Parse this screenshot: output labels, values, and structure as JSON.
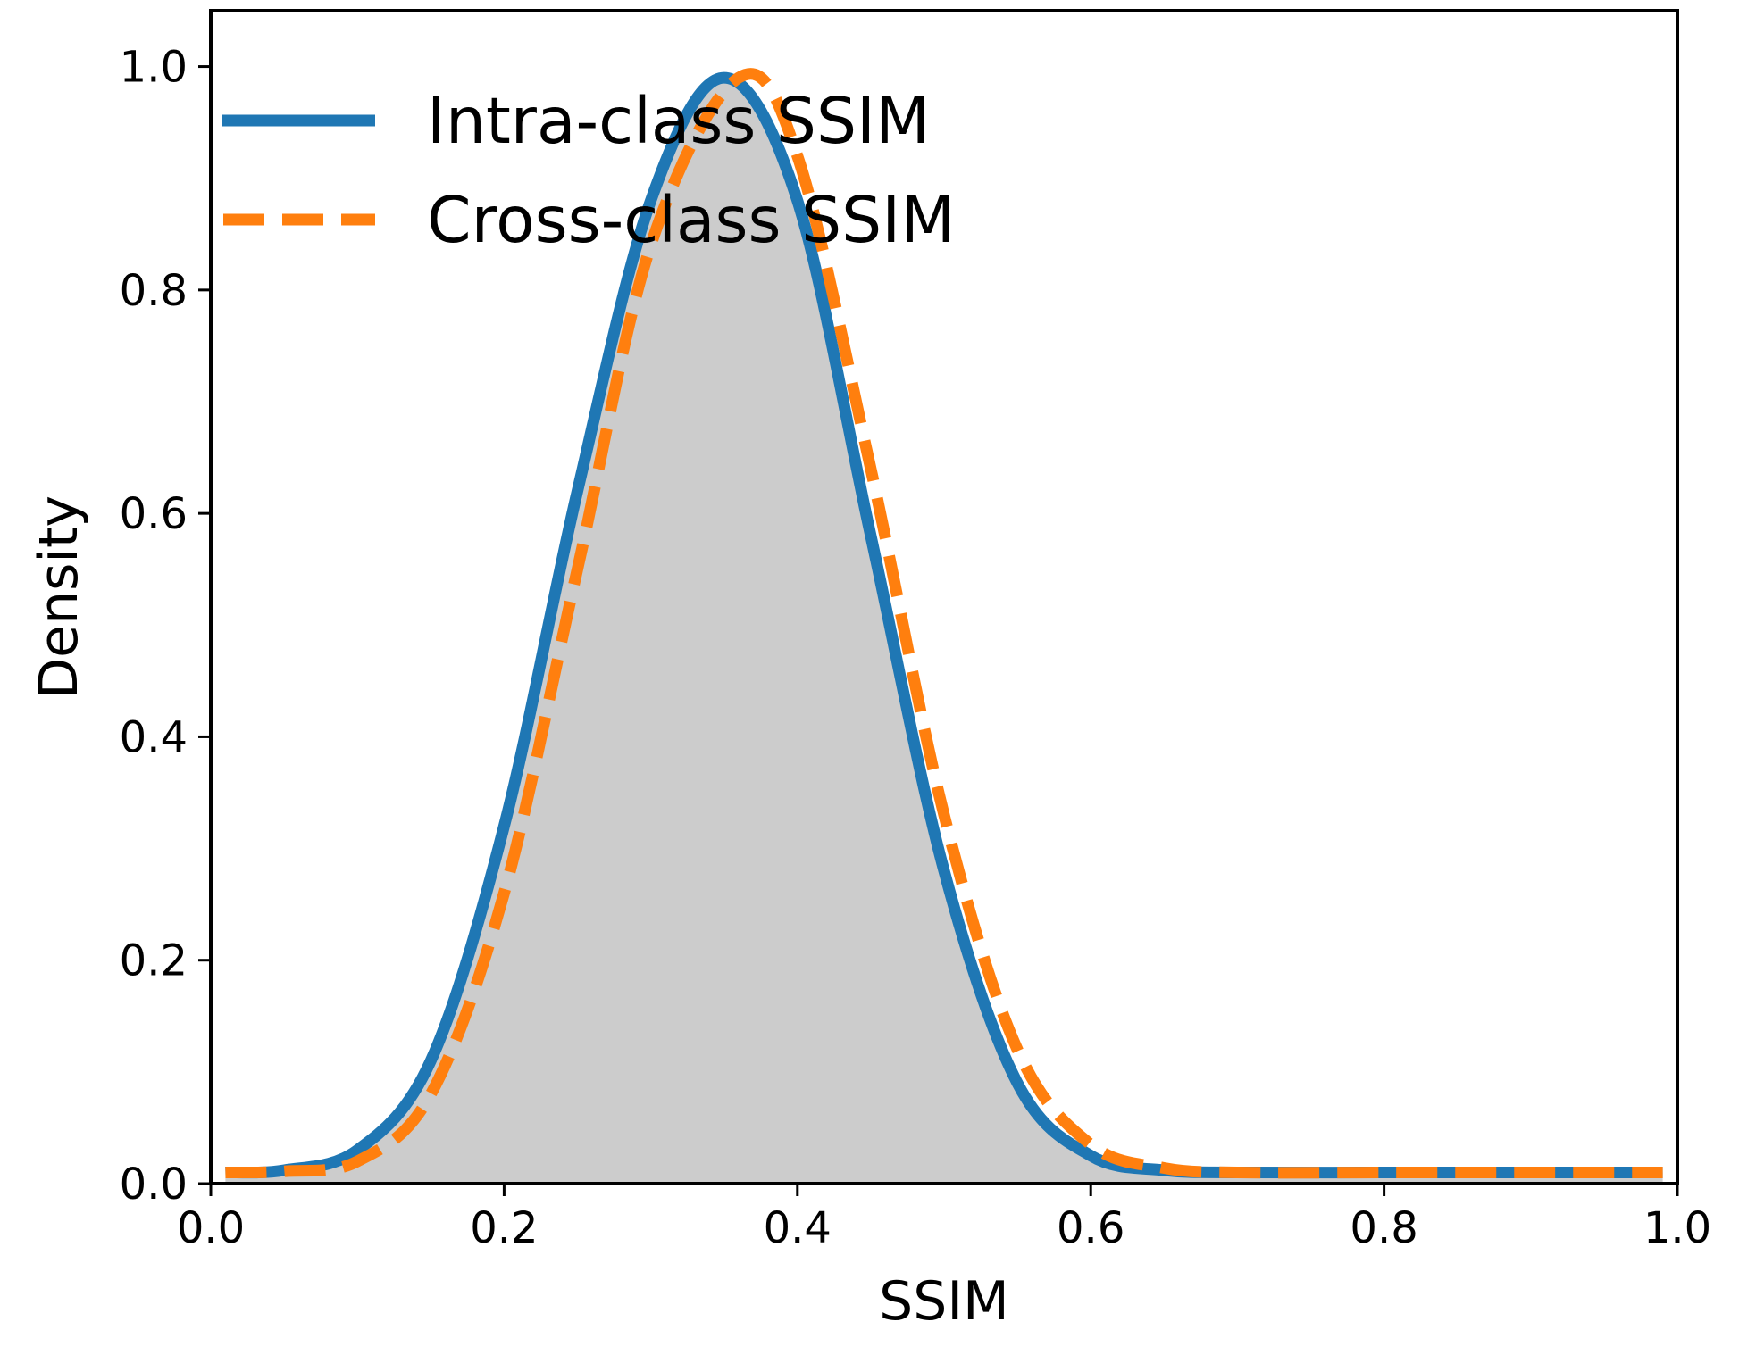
{
  "chart_data": {
    "type": "area",
    "title": "",
    "xlabel": "SSIM",
    "ylabel": "Density",
    "xlim": [
      0.0,
      1.0
    ],
    "ylim": [
      0.0,
      1.05
    ],
    "x_ticks": [
      0.0,
      0.2,
      0.4,
      0.6,
      0.8,
      1.0
    ],
    "x_tick_labels": [
      "0.0",
      "0.2",
      "0.4",
      "0.6",
      "0.8",
      "1.0"
    ],
    "y_ticks": [
      0.0,
      0.2,
      0.4,
      0.6,
      0.8,
      1.0
    ],
    "y_tick_labels": [
      "0.0",
      "0.2",
      "0.4",
      "0.6",
      "0.8",
      "1.0"
    ],
    "grid": false,
    "legend_position": "top-left",
    "series": [
      {
        "name": "Intra-class SSIM",
        "style": "solid",
        "color": "#1f77b4",
        "x": [
          0.01,
          0.05,
          0.1,
          0.15,
          0.2,
          0.25,
          0.3,
          0.35,
          0.4,
          0.45,
          0.5,
          0.55,
          0.6,
          0.65,
          0.7,
          0.8,
          0.9,
          0.99
        ],
        "values": [
          0.01,
          0.012,
          0.03,
          0.11,
          0.32,
          0.62,
          0.88,
          0.99,
          0.88,
          0.58,
          0.28,
          0.09,
          0.025,
          0.012,
          0.01,
          0.01,
          0.01,
          0.01
        ]
      },
      {
        "name": "Cross-class SSIM",
        "style": "dashed",
        "color": "#ff7f0e",
        "x": [
          0.01,
          0.05,
          0.1,
          0.15,
          0.2,
          0.25,
          0.3,
          0.36,
          0.4,
          0.45,
          0.5,
          0.55,
          0.6,
          0.65,
          0.7,
          0.8,
          0.9,
          0.99
        ],
        "values": [
          0.01,
          0.011,
          0.02,
          0.08,
          0.26,
          0.55,
          0.84,
          0.99,
          0.92,
          0.64,
          0.33,
          0.12,
          0.035,
          0.014,
          0.01,
          0.01,
          0.01,
          0.01
        ]
      }
    ],
    "fill_color": "#cccccc"
  }
}
